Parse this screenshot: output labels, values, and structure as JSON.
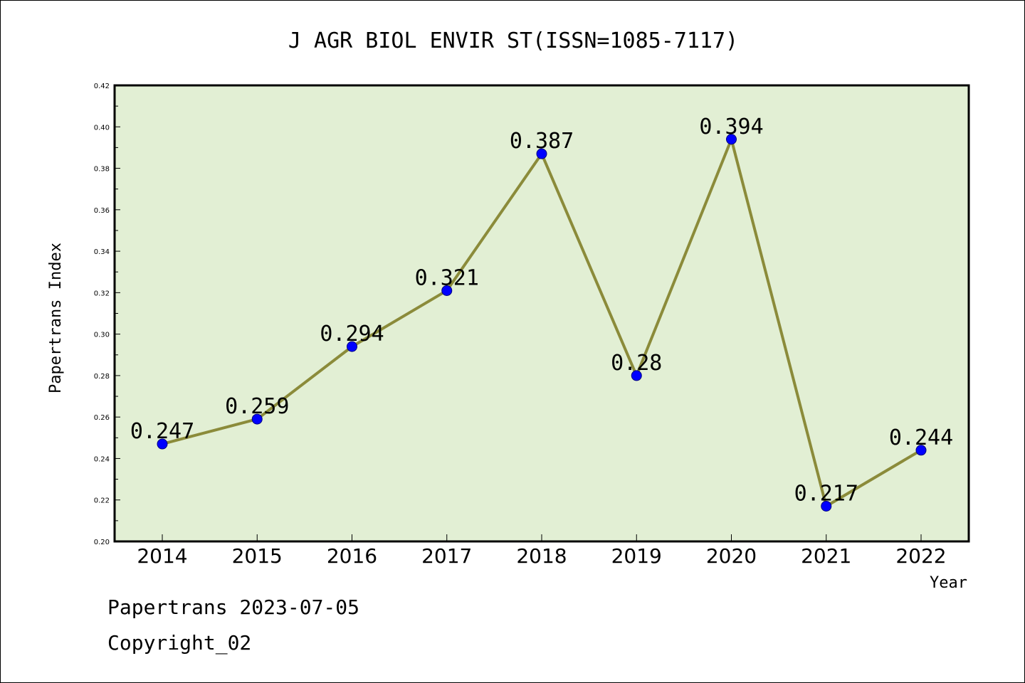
{
  "footer": {
    "source_date": "Papertrans 2023-07-05",
    "copyright": "Copyright_02"
  },
  "chart_data": {
    "type": "line",
    "title": "J AGR BIOL ENVIR ST(ISSN=1085-7117)",
    "xlabel": "Year",
    "ylabel": "Papertrans Index",
    "x": [
      "2014",
      "2015",
      "2016",
      "2017",
      "2018",
      "2019",
      "2020",
      "2021",
      "2022"
    ],
    "series": [
      {
        "values": [
          0.247,
          0.259,
          0.294,
          0.321,
          0.387,
          0.28,
          0.394,
          0.217,
          0.244
        ],
        "labels": [
          "0.247",
          "0.259",
          "0.294",
          "0.321",
          "0.387",
          "0.28",
          "0.394",
          "0.217",
          "0.244"
        ]
      }
    ],
    "ylim": [
      0.2,
      0.42
    ],
    "yticks": [
      "0.20",
      "0.22",
      "0.24",
      "0.26",
      "0.28",
      "0.30",
      "0.32",
      "0.34",
      "0.36",
      "0.38",
      "0.40",
      "0.42"
    ],
    "grid": false,
    "colors": {
      "plot_background": "#e2efd4",
      "line": "#8b8b3a",
      "marker": "#0000ff",
      "axis": "#000000"
    }
  }
}
